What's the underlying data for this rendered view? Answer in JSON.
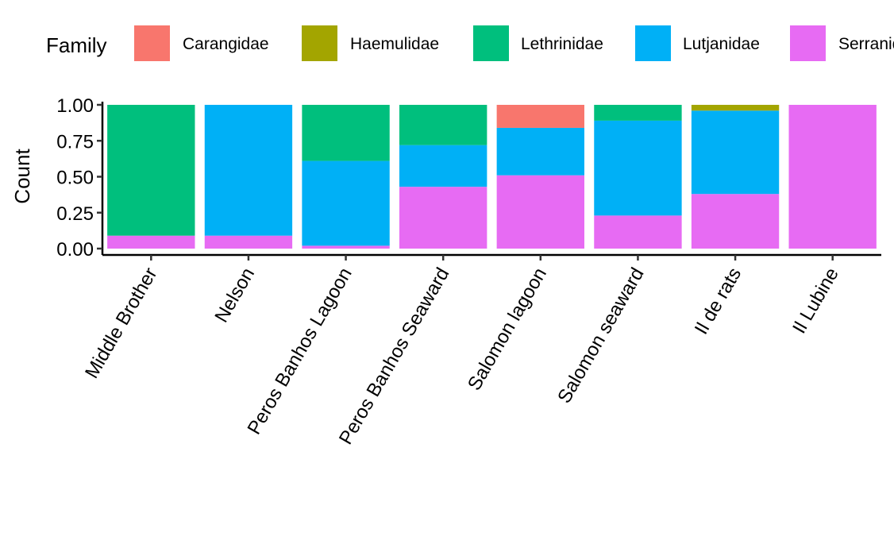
{
  "chart_data": {
    "type": "bar",
    "stacked": true,
    "normalized": true,
    "ylabel": "Count",
    "xlabel": "",
    "ylim": [
      0,
      1
    ],
    "yticks": [
      "0.00",
      "0.25",
      "0.50",
      "0.75",
      "1.00"
    ],
    "grid": false,
    "legend": {
      "title": "Family",
      "position": "top",
      "entries": [
        "Carangidae",
        "Haemulidae",
        "Lethrinidae",
        "Lutjanidae",
        "Serranidae"
      ]
    },
    "categories": [
      "Middle Brother",
      "Nelson",
      "Peros Banhos Lagoon",
      "Peros Banhos Seaward",
      "Salomon lagoon",
      "Salomon seaward",
      "Il de rats",
      "Il Lubine"
    ],
    "series": [
      {
        "name": "Carangidae",
        "color": "#F8766D",
        "values": [
          0,
          0,
          0,
          0,
          0.16,
          0,
          0,
          0
        ]
      },
      {
        "name": "Haemulidae",
        "color": "#A3A500",
        "values": [
          0,
          0,
          0,
          0,
          0,
          0,
          0.04,
          0
        ]
      },
      {
        "name": "Lethrinidae",
        "color": "#00BF7D",
        "values": [
          0.91,
          0,
          0.39,
          0.28,
          0,
          0.11,
          0,
          0
        ]
      },
      {
        "name": "Lutjanidae",
        "color": "#00B0F6",
        "values": [
          0,
          0.91,
          0.59,
          0.29,
          0.33,
          0.66,
          0.58,
          0
        ]
      },
      {
        "name": "Serranidae",
        "color": "#E76BF3",
        "values": [
          0.09,
          0.09,
          0.02,
          0.43,
          0.51,
          0.23,
          0.38,
          1.0
        ]
      }
    ]
  }
}
